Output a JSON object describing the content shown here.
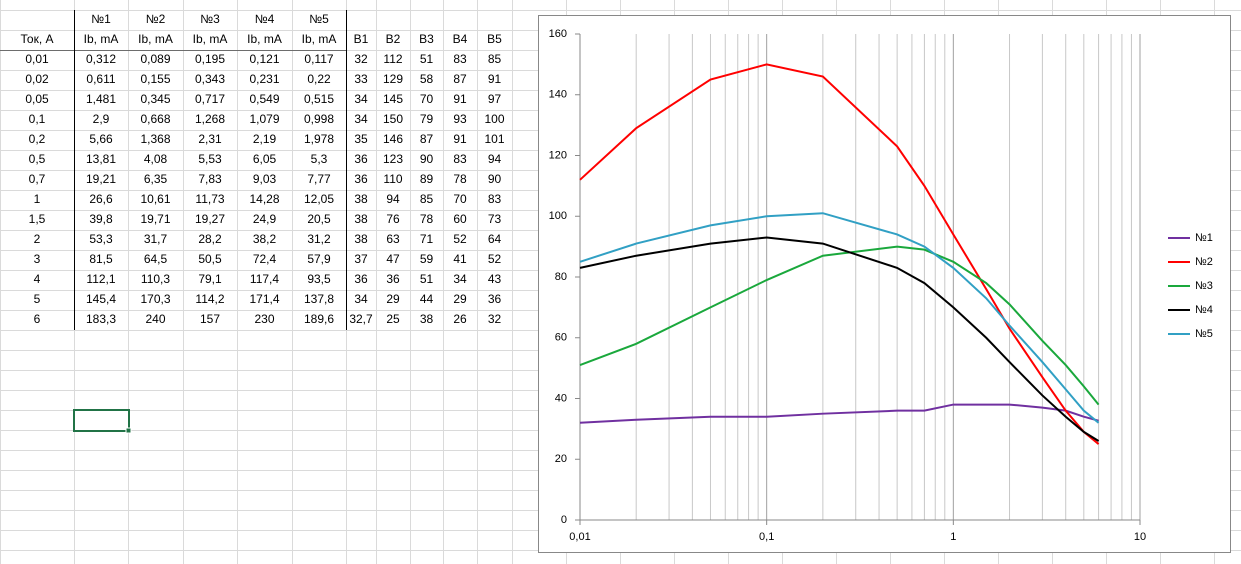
{
  "table": {
    "group_header": [
      "№1",
      "№2",
      "№3",
      "№4",
      "№5"
    ],
    "columns": [
      "Ток, А",
      "Ib, mA",
      "Ib, mA",
      "Ib, mA",
      "Ib, mA",
      "Ib, mA",
      "B1",
      "B2",
      "B3",
      "B4",
      "B5"
    ],
    "rows": [
      [
        "0,01",
        "0,312",
        "0,089",
        "0,195",
        "0,121",
        "0,117",
        "32",
        "112",
        "51",
        "83",
        "85"
      ],
      [
        "0,02",
        "0,611",
        "0,155",
        "0,343",
        "0,231",
        "0,22",
        "33",
        "129",
        "58",
        "87",
        "91"
      ],
      [
        "0,05",
        "1,481",
        "0,345",
        "0,717",
        "0,549",
        "0,515",
        "34",
        "145",
        "70",
        "91",
        "97"
      ],
      [
        "0,1",
        "2,9",
        "0,668",
        "1,268",
        "1,079",
        "0,998",
        "34",
        "150",
        "79",
        "93",
        "100"
      ],
      [
        "0,2",
        "5,66",
        "1,368",
        "2,31",
        "2,19",
        "1,978",
        "35",
        "146",
        "87",
        "91",
        "101"
      ],
      [
        "0,5",
        "13,81",
        "4,08",
        "5,53",
        "6,05",
        "5,3",
        "36",
        "123",
        "90",
        "83",
        "94"
      ],
      [
        "0,7",
        "19,21",
        "6,35",
        "7,83",
        "9,03",
        "7,77",
        "36",
        "110",
        "89",
        "78",
        "90"
      ],
      [
        "1",
        "26,6",
        "10,61",
        "11,73",
        "14,28",
        "12,05",
        "38",
        "94",
        "85",
        "70",
        "83"
      ],
      [
        "1,5",
        "39,8",
        "19,71",
        "19,27",
        "24,9",
        "20,5",
        "38",
        "76",
        "78",
        "60",
        "73"
      ],
      [
        "2",
        "53,3",
        "31,7",
        "28,2",
        "38,2",
        "31,2",
        "38",
        "63",
        "71",
        "52",
        "64"
      ],
      [
        "3",
        "81,5",
        "64,5",
        "50,5",
        "72,4",
        "57,9",
        "37",
        "47",
        "59",
        "41",
        "52"
      ],
      [
        "4",
        "112,1",
        "110,3",
        "79,1",
        "117,4",
        "93,5",
        "36",
        "36",
        "51",
        "34",
        "43"
      ],
      [
        "5",
        "145,4",
        "170,3",
        "114,2",
        "171,4",
        "137,8",
        "34",
        "29",
        "44",
        "29",
        "36"
      ],
      [
        "6",
        "183,3",
        "240",
        "157",
        "230",
        "189,6",
        "32,7",
        "25",
        "38",
        "26",
        "32"
      ]
    ]
  },
  "chart_data": {
    "type": "line",
    "x": [
      0.01,
      0.02,
      0.05,
      0.1,
      0.2,
      0.5,
      0.7,
      1,
      1.5,
      2,
      3,
      4,
      5,
      6
    ],
    "series": [
      {
        "name": "№1",
        "color": "#7030a0",
        "values": [
          32,
          33,
          34,
          34,
          35,
          36,
          36,
          38,
          38,
          38,
          37,
          36,
          34,
          32.7
        ]
      },
      {
        "name": "№2",
        "color": "#ff0000",
        "values": [
          112,
          129,
          145,
          150,
          146,
          123,
          110,
          94,
          76,
          63,
          47,
          36,
          29,
          25
        ]
      },
      {
        "name": "№3",
        "color": "#1aa83c",
        "values": [
          51,
          58,
          70,
          79,
          87,
          90,
          89,
          85,
          78,
          71,
          59,
          51,
          44,
          38
        ]
      },
      {
        "name": "№4",
        "color": "#000000",
        "values": [
          83,
          87,
          91,
          93,
          91,
          83,
          78,
          70,
          60,
          52,
          41,
          34,
          29,
          26
        ]
      },
      {
        "name": "№5",
        "color": "#31a0c4",
        "values": [
          85,
          91,
          97,
          100,
          101,
          94,
          90,
          83,
          73,
          64,
          52,
          43,
          36,
          32
        ]
      }
    ],
    "log_x": true,
    "xlim": [
      0.01,
      10
    ],
    "xticks": [
      {
        "value": 0.01,
        "label": "0,01"
      },
      {
        "value": 0.1,
        "label": "0,1"
      },
      1,
      10
    ],
    "ylim": [
      0,
      160
    ],
    "yticks": [
      0,
      20,
      40,
      60,
      80,
      100,
      120,
      140,
      160
    ],
    "xgrid": true,
    "ygrid": false,
    "legend": "right"
  }
}
